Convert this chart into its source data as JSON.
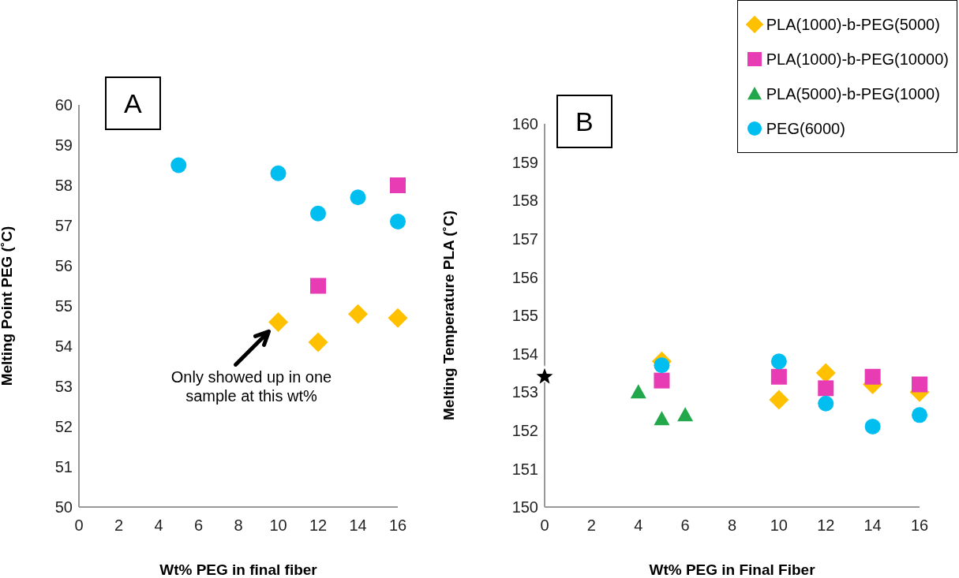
{
  "chart_data": [
    {
      "type": "scatter",
      "title": "A",
      "xlabel": "Wt% PEG in final fiber",
      "ylabel": "Melting Point PEG (˚C)",
      "xlim": [
        0,
        16
      ],
      "xticks": [
        0,
        2,
        4,
        6,
        8,
        10,
        12,
        14,
        16
      ],
      "ylim": [
        50,
        60
      ],
      "yticks": [
        50,
        51,
        52,
        53,
        54,
        55,
        56,
        57,
        58,
        59,
        60
      ],
      "grid": false,
      "legend": false,
      "annotations": [
        {
          "text": "Only showed up in one sample at this wt%",
          "x": 10,
          "y": 54.6
        }
      ],
      "series": [
        {
          "color": "#ffc000",
          "marker": "diamond",
          "x": [
            10,
            12,
            14,
            16
          ],
          "values": [
            54.6,
            54.1,
            54.8,
            54.7
          ]
        },
        {
          "color": "#e83cb4",
          "marker": "square",
          "x": [
            12,
            16
          ],
          "values": [
            55.5,
            58.0
          ]
        },
        {
          "color": "#00bff0",
          "marker": "circle",
          "x": [
            5,
            10,
            12,
            14,
            16
          ],
          "values": [
            58.5,
            58.3,
            57.3,
            57.7,
            57.1
          ]
        }
      ]
    },
    {
      "type": "scatter",
      "title": "B",
      "xlabel": "Wt% PEG in Final Fiber",
      "ylabel": "Melting Temperature PLA (˚C)",
      "xlim": [
        0,
        16
      ],
      "xticks": [
        0,
        2,
        4,
        6,
        8,
        10,
        12,
        14,
        16
      ],
      "ylim": [
        150,
        160
      ],
      "yticks": [
        150,
        151,
        152,
        153,
        154,
        155,
        156,
        157,
        158,
        159,
        160
      ],
      "grid": false,
      "legend": "top right",
      "series": [
        {
          "name": "PLA(1000)-b-PEG(5000)",
          "color": "#ffc000",
          "marker": "diamond",
          "x": [
            5,
            10,
            12,
            14,
            16
          ],
          "values": [
            153.8,
            152.8,
            153.5,
            153.2,
            153.0
          ]
        },
        {
          "name": "PLA(1000)-b-PEG(10000)",
          "color": "#e83cb4",
          "marker": "square",
          "x": [
            5,
            10,
            12,
            14,
            16
          ],
          "values": [
            153.3,
            153.4,
            153.1,
            153.4,
            153.2
          ]
        },
        {
          "name": "PLA(5000)-b-PEG(1000)",
          "color": "#22a84a",
          "marker": "triangle",
          "x": [
            4,
            5,
            6
          ],
          "values": [
            153.0,
            152.3,
            152.4
          ]
        },
        {
          "name": "PEG(6000)",
          "color": "#00bff0",
          "marker": "circle",
          "x": [
            5,
            10,
            12,
            14,
            16
          ],
          "values": [
            153.7,
            153.8,
            152.7,
            152.1,
            152.4
          ]
        },
        {
          "color": "#000000",
          "marker": "star",
          "x": [
            0
          ],
          "values": [
            153.4
          ]
        }
      ]
    }
  ]
}
